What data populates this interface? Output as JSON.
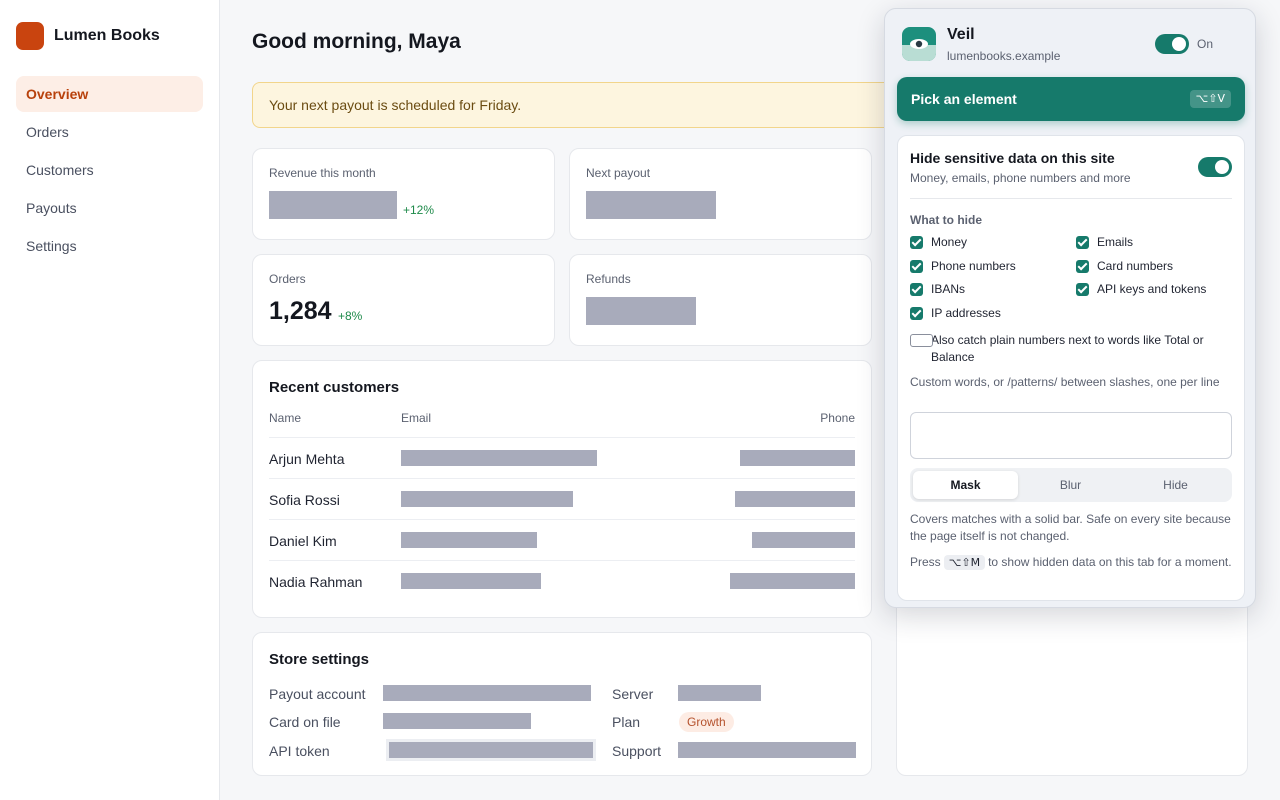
{
  "app": {
    "brand_name": "Lumen Books",
    "brand_color": "#c9440f",
    "greeting": "Good morning, Maya",
    "banner": "Your next payout is scheduled for Friday."
  },
  "sidebar": {
    "active_bg": "#fdeee6",
    "active_color": "#b8410c",
    "items": [
      {
        "label": "Overview",
        "active": true
      },
      {
        "label": "Orders"
      },
      {
        "label": "Customers"
      },
      {
        "label": "Payouts"
      },
      {
        "label": "Settings"
      }
    ]
  },
  "stats": {
    "revenue": {
      "label": "Revenue this month",
      "delta": "+12%"
    },
    "payout": {
      "label": "Next payout"
    },
    "orders": {
      "label": "Orders",
      "value": "1,284",
      "delta": "+8%"
    },
    "refunds": {
      "label": "Refunds"
    }
  },
  "customers": {
    "title": "Recent customers",
    "headers": {
      "name": "Name",
      "email": "Email",
      "phone": "Phone"
    },
    "rows": [
      {
        "name": "Arjun Mehta"
      },
      {
        "name": "Sofia Rossi"
      },
      {
        "name": "Daniel Kim"
      },
      {
        "name": "Nadia Rahman"
      }
    ]
  },
  "store_settings": {
    "title": "Store settings",
    "payout_account": "Payout account",
    "card_on_file": "Card on file",
    "api_token": "API token",
    "server": "Server",
    "plan": "Plan",
    "plan_value": "Growth",
    "support": "Support"
  },
  "extension": {
    "name": "Veil",
    "site": "lumenbooks.example",
    "enabled_label": "On",
    "accent": "#167a6b",
    "pick_label": "Pick an element",
    "pick_shortcut": "⌥⇧V",
    "hide_title": "Hide sensitive data on this site",
    "hide_sub": "Money, emails, phone numbers and more",
    "what_to_hide": "What to hide",
    "categories": [
      {
        "label": "Money",
        "checked": true
      },
      {
        "label": "Emails",
        "checked": true
      },
      {
        "label": "Phone numbers",
        "checked": true
      },
      {
        "label": "Card numbers",
        "checked": true
      },
      {
        "label": "IBANs",
        "checked": true
      },
      {
        "label": "API keys and tokens",
        "checked": true
      },
      {
        "label": "IP addresses",
        "checked": true
      }
    ],
    "catch_label": "Also catch plain numbers next to words like Total or Balance",
    "catch_checked": false,
    "custom_label": "Custom words, or /patterns/ between slashes, one per line",
    "custom_value": "",
    "modes": [
      "Mask",
      "Blur",
      "Hide"
    ],
    "active_mode": "Mask",
    "mode_desc": "Covers matches with a solid bar. Safe on every site because the page itself is not changed.",
    "press_prefix": "Press",
    "reveal_shortcut": "⌥⇧M",
    "press_suffix": "to show hidden data on this tab for a moment."
  }
}
